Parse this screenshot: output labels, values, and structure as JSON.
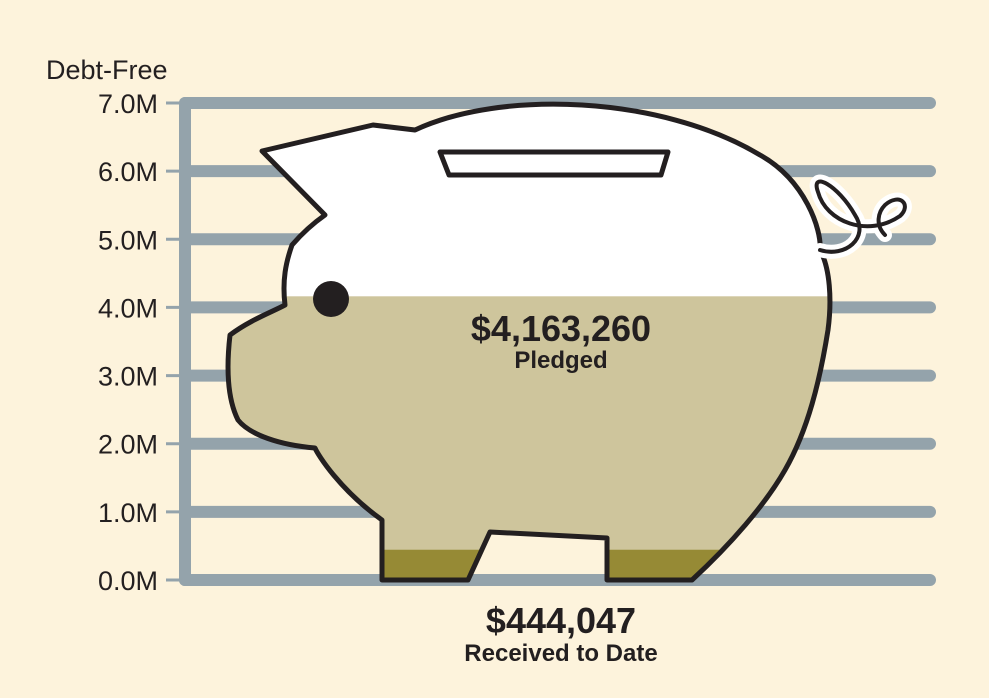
{
  "chart_data": {
    "type": "bar",
    "title": "",
    "ylabel": "",
    "top_label": "Debt-Free",
    "ylim": [
      0,
      7000000
    ],
    "y_ticks": [
      {
        "value": 0,
        "label": "0.0M"
      },
      {
        "value": 1000000,
        "label": "1.0M"
      },
      {
        "value": 2000000,
        "label": "2.0M"
      },
      {
        "value": 3000000,
        "label": "3.0M"
      },
      {
        "value": 4000000,
        "label": "4.0M"
      },
      {
        "value": 5000000,
        "label": "5.0M"
      },
      {
        "value": 6000000,
        "label": "6.0M"
      },
      {
        "value": 7000000,
        "label": "7.0M"
      }
    ],
    "series": [
      {
        "name": "Pledged",
        "value": 4163260,
        "display": "$4,163,260",
        "color": "#cec59c"
      },
      {
        "name": "Received to Date",
        "value": 444047,
        "display": "$444,047",
        "color": "#968a35"
      }
    ],
    "grid": true
  },
  "colors": {
    "background": "#fdf3dc",
    "gridline": "#94a3ab",
    "outline": "#231f20",
    "pig_empty": "#ffffff"
  }
}
